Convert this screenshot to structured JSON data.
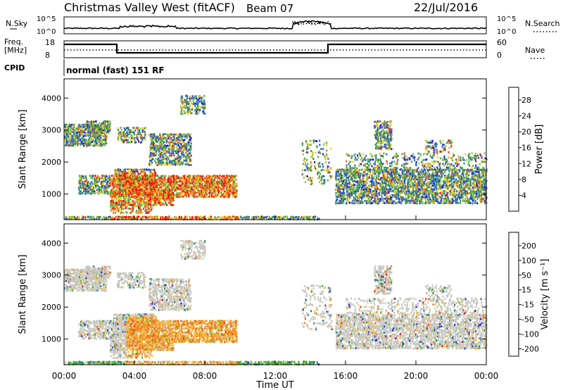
{
  "header": {
    "title": "Christmas Valley West (fitACF)",
    "beam": "Beam 07",
    "date": "22/Jul/2016"
  },
  "top_panels": {
    "nsky_label": "N.Sky",
    "nsky_ticks": [
      "10^5",
      "10^0"
    ],
    "nsearch_label": "N.Search",
    "nsearch_ticks": [
      "10^5",
      "10^0"
    ],
    "freq_label": "Freq.",
    "freq_unit": "[MHz]",
    "freq_ticks": [
      "18",
      "8"
    ],
    "nave_label": "Nave",
    "nave_ticks": [
      "60",
      "0"
    ],
    "cpid_label": "CPID",
    "cpid_text": "normal (fast) 151 RF"
  },
  "chart_data": [
    {
      "type": "heatmap",
      "name": "power",
      "ylabel": "Slant Range [km]",
      "yticks": [
        "1000",
        "2000",
        "3000",
        "4000"
      ],
      "ylim": [
        200,
        4600
      ],
      "xlim": [
        0,
        24
      ],
      "colorbar_label": "Power [dB]",
      "colorbar_ticks": [
        "4",
        "8",
        "12",
        "16",
        "20",
        "24",
        "28"
      ],
      "colorbar_colors": [
        "#1a1aff",
        "#2860c8",
        "#2e8a6a",
        "#5aaa4a",
        "#8ccc38",
        "#e8d020",
        "#f6a020",
        "#f07018",
        "#e83010",
        "#ff0000"
      ]
    },
    {
      "type": "heatmap",
      "name": "velocity",
      "ylabel": "Slant Range [km]",
      "yticks": [
        "1000",
        "2000",
        "3000",
        "4000"
      ],
      "ylim": [
        200,
        4600
      ],
      "xlim": [
        0,
        24
      ],
      "colorbar_label": "Velocity [m s⁻¹]",
      "colorbar_ticks": [
        "200",
        "100",
        "50",
        "15",
        "-15",
        "-50",
        "-100",
        "-200"
      ],
      "colorbar_colors": [
        "#1a2ad8",
        "#2a70a8",
        "#2a8a58",
        "#54c030",
        "#c8c8c0",
        "#f0c040",
        "#f08a20",
        "#f05018",
        "#e81010"
      ]
    }
  ],
  "xaxis": {
    "ticks": [
      "00:00",
      "04:00",
      "08:00",
      "12:00",
      "16:00",
      "20:00",
      "00:00"
    ],
    "label": "Time UT"
  }
}
